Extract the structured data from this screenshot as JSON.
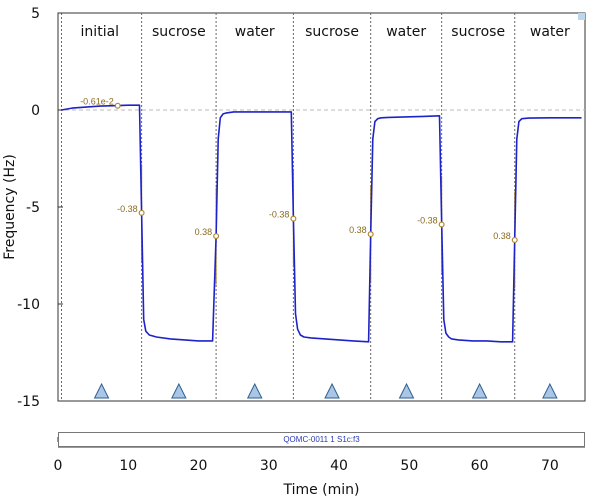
{
  "chart_data": {
    "type": "line",
    "xlabel": "Time (min)",
    "ylabel": "Frequency (Hz)",
    "xlim": [
      0,
      75
    ],
    "ylim": [
      -15,
      5
    ],
    "x_ticks": [
      0,
      10,
      20,
      30,
      40,
      50,
      60,
      70
    ],
    "y_ticks": [
      5,
      0,
      -5,
      -10,
      -15
    ],
    "baseline": 0,
    "phase_boundaries": [
      0.5,
      11.9,
      22.5,
      33.5,
      44.5,
      54.6,
      65.0
    ],
    "phases": [
      {
        "label": "initial",
        "x_start": 0,
        "x_end": 11.9
      },
      {
        "label": "sucrose",
        "x_start": 11.9,
        "x_end": 22.5
      },
      {
        "label": "water",
        "x_start": 22.5,
        "x_end": 33.5
      },
      {
        "label": "sucrose",
        "x_start": 33.5,
        "x_end": 44.5
      },
      {
        "label": "water",
        "x_start": 44.5,
        "x_end": 54.6
      },
      {
        "label": "sucrose",
        "x_start": 54.6,
        "x_end": 65.0
      },
      {
        "label": "water",
        "x_start": 65.0,
        "x_end": 75
      }
    ],
    "series": [
      {
        "color": "#1e23c8",
        "x": [
          0.5,
          2,
          4,
          6,
          8,
          10,
          11.6,
          11.9,
          12.2,
          12.5,
          13,
          14,
          16,
          18,
          20,
          22.0,
          22.5,
          22.8,
          23.1,
          23.5,
          24,
          25,
          28,
          31,
          33.2,
          33.5,
          33.8,
          34.1,
          34.5,
          35,
          36,
          38,
          40,
          42,
          44.2,
          44.5,
          44.8,
          45.1,
          45.5,
          46,
          47,
          50,
          52,
          54.3,
          54.6,
          54.9,
          55.2,
          55.6,
          56,
          57,
          59,
          61,
          63,
          64.7,
          65.0,
          65.3,
          65.6,
          66,
          67,
          70,
          72,
          74.5
        ],
        "y": [
          0.0,
          0.1,
          0.15,
          0.2,
          0.22,
          0.25,
          0.25,
          -5.3,
          -10.8,
          -11.4,
          -11.6,
          -11.7,
          -11.8,
          -11.85,
          -11.9,
          -11.9,
          -6.5,
          -1.5,
          -0.4,
          -0.2,
          -0.15,
          -0.1,
          -0.1,
          -0.1,
          -0.1,
          -5.6,
          -10.5,
          -11.3,
          -11.6,
          -11.7,
          -11.75,
          -11.8,
          -11.85,
          -11.9,
          -11.95,
          -6.4,
          -1.5,
          -0.6,
          -0.45,
          -0.4,
          -0.38,
          -0.35,
          -0.33,
          -0.3,
          -5.9,
          -10.8,
          -11.5,
          -11.7,
          -11.8,
          -11.85,
          -11.9,
          -11.9,
          -11.95,
          -11.95,
          -6.7,
          -1.5,
          -0.6,
          -0.45,
          -0.42,
          -0.4,
          -0.4,
          -0.4
        ]
      }
    ],
    "slope_markers": [
      {
        "x": 8.5,
        "y": 0.22,
        "label": "-0.61e-2"
      },
      {
        "x": 11.9,
        "y": -5.3,
        "label": "-0.38"
      },
      {
        "x": 22.5,
        "y": -6.5,
        "label": "0.38"
      },
      {
        "x": 33.5,
        "y": -5.6,
        "label": "-0.38"
      },
      {
        "x": 44.5,
        "y": -6.4,
        "label": "0.38"
      },
      {
        "x": 54.6,
        "y": -5.9,
        "label": "-0.38"
      },
      {
        "x": 65.0,
        "y": -6.7,
        "label": "0.38"
      }
    ],
    "injection_markers_x": [
      6.2,
      17.2,
      28.0,
      39.0,
      49.6,
      60.0,
      70.0
    ],
    "grid": false,
    "colors": {
      "trace": "#1e23c8",
      "slope": "#b08830",
      "baseline": "#bbbbbb",
      "divider": "#666666",
      "triangle_fill": "#a9c6e6",
      "triangle_stroke": "#2f5f8f"
    }
  },
  "run_label": "QOMC-0011 1 S1c:f3"
}
